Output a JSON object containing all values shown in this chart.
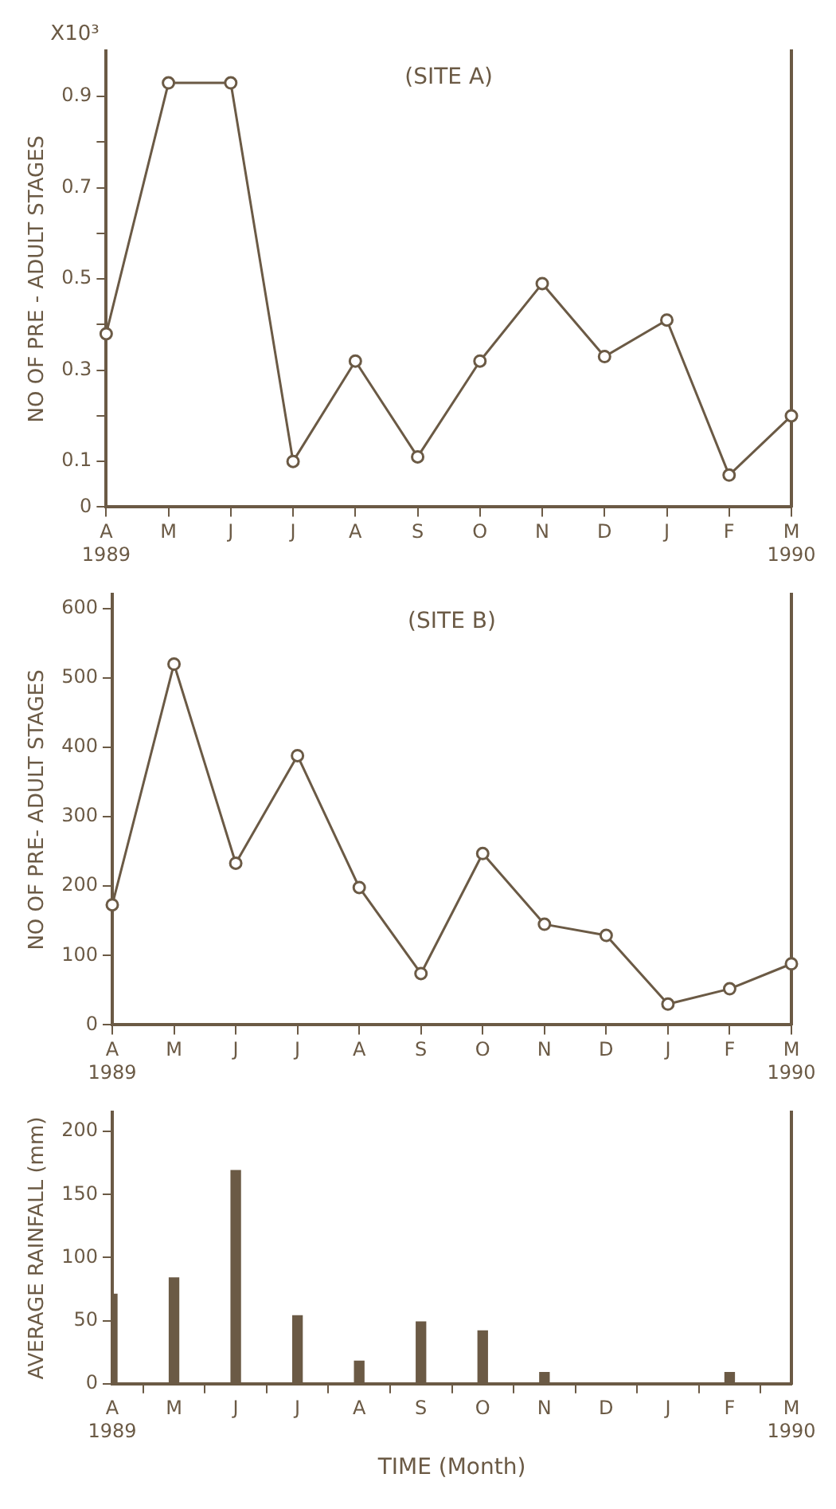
{
  "chart_data": [
    {
      "type": "line",
      "title": "(SITE A)",
      "ylabel": "NO OF PRE - ADULT STAGES",
      "annotations": [
        "X10³"
      ],
      "categories": [
        "A\n1989",
        "M",
        "J",
        "J",
        "A",
        "S",
        "O",
        "N",
        "D",
        "J",
        "F",
        "M\n1990"
      ],
      "series": [
        {
          "color": "#6b5a45",
          "values": [
            0.38,
            0.93,
            0.93,
            0.1,
            0.32,
            0.11,
            0.32,
            0.49,
            0.33,
            0.41,
            0.07,
            0.2
          ]
        }
      ],
      "ylim": [
        0,
        1.0
      ],
      "yticks": [
        0,
        0.1,
        {
          "value": 0.2,
          "label": null
        },
        0.3,
        {
          "value": 0.4,
          "label": null
        },
        0.5,
        {
          "value": 0.6,
          "label": null
        },
        0.7,
        {
          "value": 0.8,
          "label": null
        },
        0.9
      ],
      "grid": false,
      "legend": false,
      "marker": "circle",
      "line_style": "solid"
    },
    {
      "type": "line",
      "title": "(SITE B)",
      "ylabel": "NO OF PRE- ADULT STAGES",
      "categories": [
        "A\n1989",
        "M",
        "J",
        "J",
        "A",
        "S",
        "O",
        "N",
        "D",
        "J",
        "F",
        "M\n1990"
      ],
      "series": [
        {
          "color": "#6b5a45",
          "values": [
            173,
            520,
            233,
            388,
            198,
            74,
            247,
            145,
            129,
            30,
            52,
            88
          ]
        }
      ],
      "ylim": [
        0,
        620
      ],
      "yticks": [
        0,
        100,
        200,
        300,
        400,
        500,
        600
      ],
      "grid": false,
      "legend": false,
      "marker": "circle",
      "line_style": "solid"
    },
    {
      "type": "bar",
      "ylabel": "AVERAGE RAINFALL (mm)",
      "xlabel": "TIME (Month)",
      "categories": [
        "A\n1989",
        "M",
        "J",
        "J",
        "A",
        "S",
        "O",
        "N",
        "D",
        "J",
        "F",
        "M\n1990"
      ],
      "series": [
        {
          "color": "#6b5a45",
          "values": [
            71,
            84,
            169,
            54,
            18,
            49,
            42,
            9,
            0,
            0,
            9,
            0
          ]
        }
      ],
      "ylim": [
        0,
        215
      ],
      "yticks": [
        0,
        50,
        100,
        150,
        200
      ],
      "grid": false,
      "legend": false
    }
  ]
}
